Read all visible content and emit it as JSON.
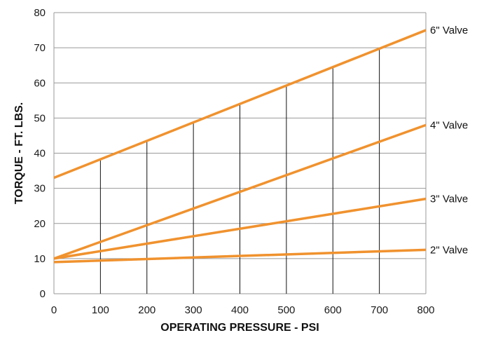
{
  "chart_data": {
    "type": "line",
    "title": "",
    "xlabel": "OPERATING PRESSURE - PSI",
    "ylabel": "TORQUE - FT. LBS.",
    "xlim": [
      0,
      800
    ],
    "ylim": [
      0,
      80
    ],
    "x_ticks": [
      "0",
      "100",
      "200",
      "300",
      "400",
      "500",
      "600",
      "700",
      "800"
    ],
    "y_ticks": [
      "0",
      "10",
      "20",
      "30",
      "40",
      "50",
      "60",
      "70",
      "80"
    ],
    "grid": "horizontal gridlines at each y tick; vertical drop lines at each x tick from the top series down to the axis",
    "legend": "labels at right end of each line",
    "line_color": "#F0922E",
    "grid_color": "#999999",
    "x": [
      0,
      800
    ],
    "series": [
      {
        "name": "6\" Valve",
        "values": [
          33,
          75
        ]
      },
      {
        "name": "4\" Valve",
        "values": [
          10,
          48
        ]
      },
      {
        "name": "3\" Valve",
        "values": [
          10,
          27
        ]
      },
      {
        "name": "2\" Valve",
        "values": [
          9,
          12.5
        ]
      }
    ]
  }
}
